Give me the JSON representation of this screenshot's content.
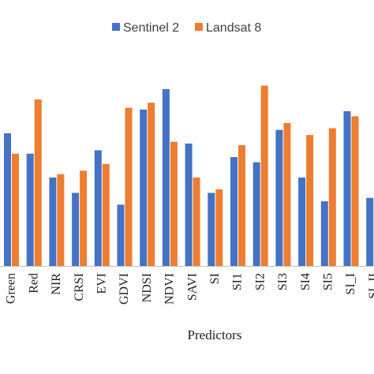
{
  "chart_data": {
    "type": "bar",
    "title": "",
    "xlabel": "Predictors",
    "ylabel": "",
    "categories": [
      "Green",
      "Red",
      "NIR",
      "CRSI",
      "EVI",
      "GDVI",
      "NDSI",
      "NDVI",
      "SAVI",
      "SI",
      "SI1",
      "SI2",
      "SI3",
      "SI4",
      "SI5",
      "SI_I",
      "SI_II"
    ],
    "series": [
      {
        "name": "Sentinel 2",
        "color": "#4472C4",
        "values": [
          0.78,
          0.66,
          0.52,
          0.43,
          0.68,
          0.36,
          0.92,
          1.04,
          0.72,
          0.43,
          0.64,
          0.61,
          0.8,
          0.52,
          0.38,
          0.91,
          0.4
        ]
      },
      {
        "name": "Landsat 8",
        "color": "#ED7D31",
        "values": [
          0.66,
          0.98,
          0.54,
          0.56,
          0.6,
          0.93,
          0.96,
          0.73,
          0.52,
          0.45,
          0.71,
          1.06,
          0.84,
          0.77,
          0.81,
          0.88,
          null
        ]
      }
    ],
    "ylim": [
      0,
      1.1
    ],
    "grid": false,
    "legend": "top-center"
  }
}
